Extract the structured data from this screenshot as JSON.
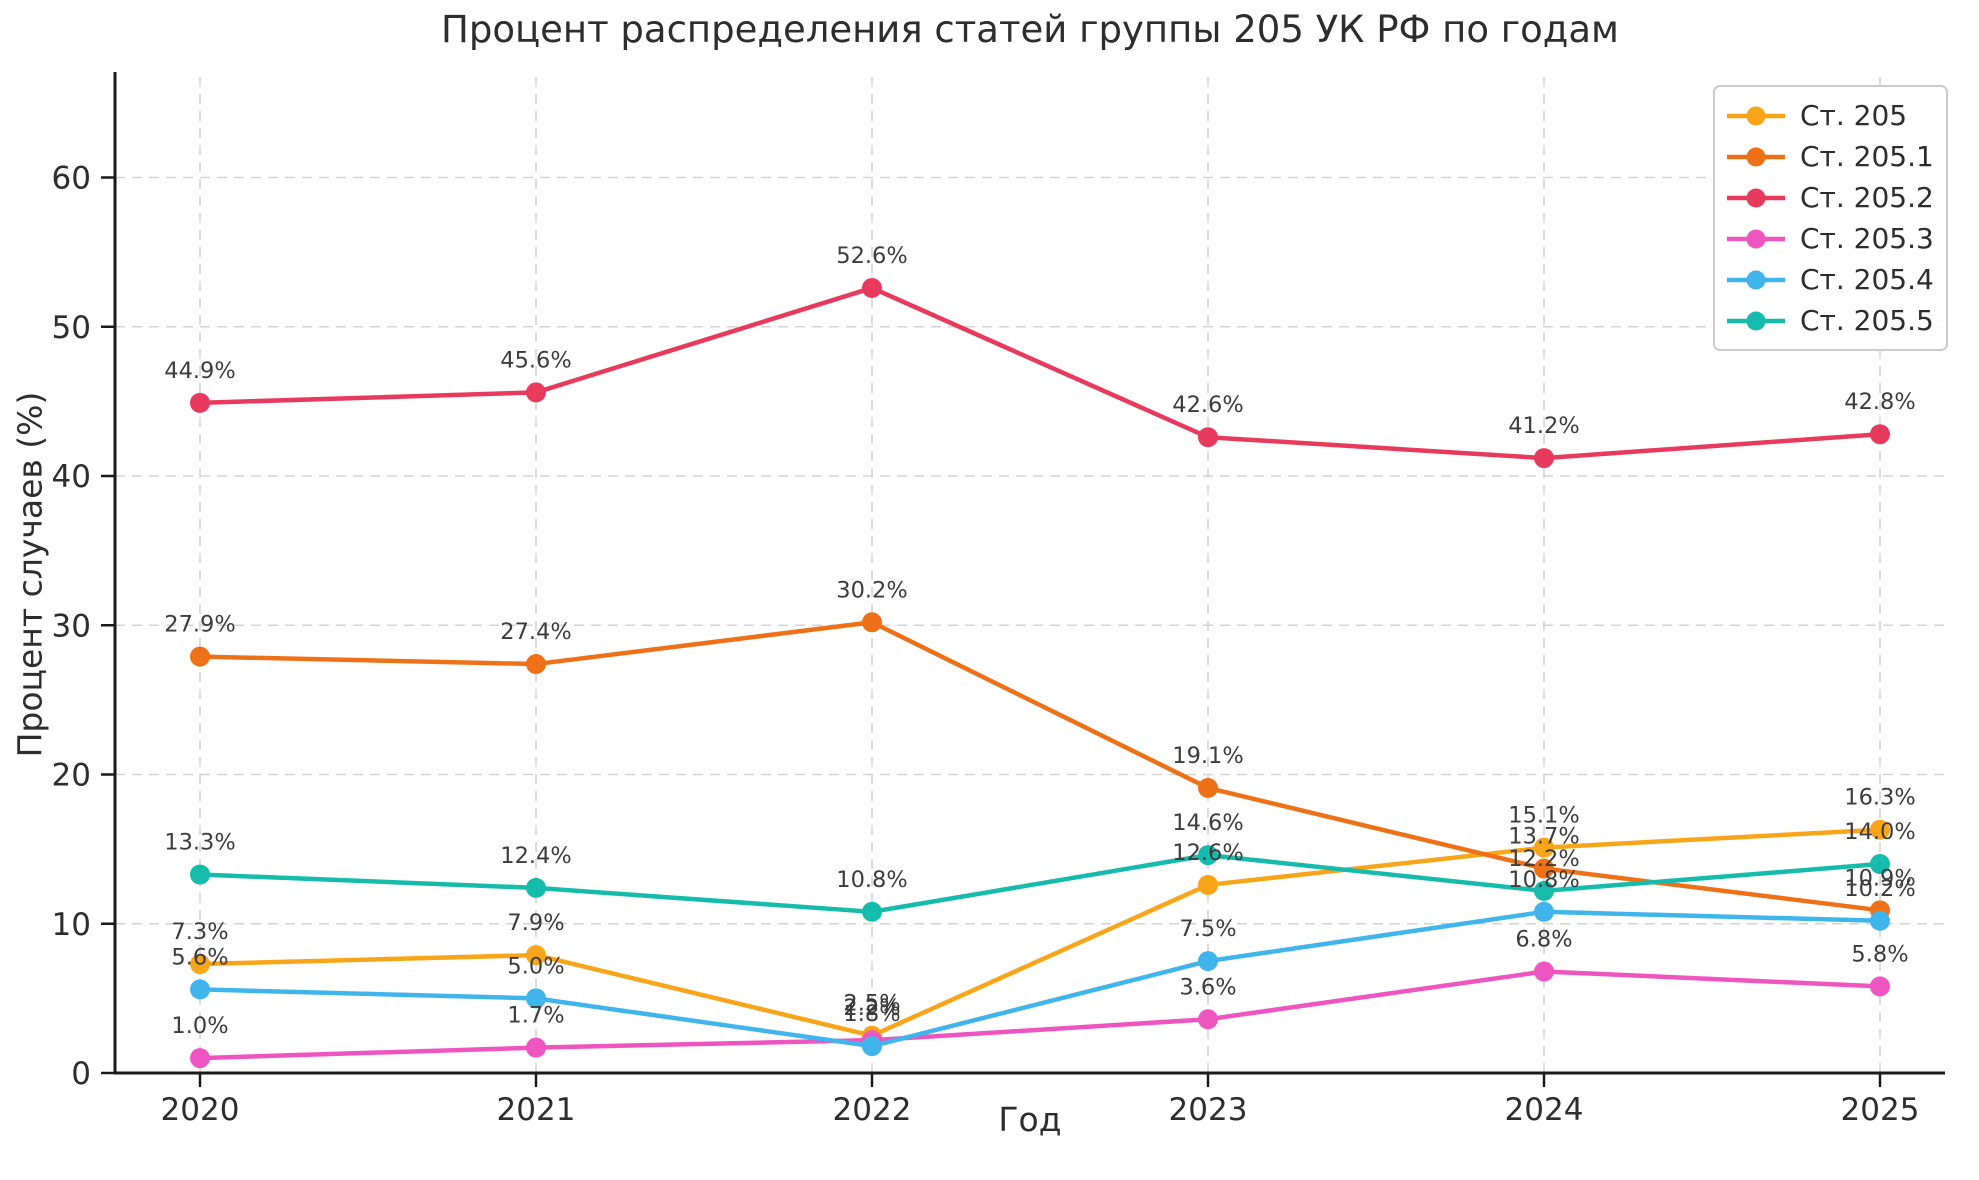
{
  "chart_data": {
    "type": "line",
    "title": "Процент распределения статей группы 205 УК РФ по годам",
    "xlabel": "Год",
    "ylabel": "Процент случаев (%)",
    "x": [
      2020,
      2021,
      2022,
      2023,
      2024,
      2025
    ],
    "x_tick_labels": [
      "2020",
      "2021",
      "2022",
      "2023",
      "2024",
      "2025"
    ],
    "y_ticks": [
      0,
      10,
      20,
      30,
      40,
      50,
      60
    ],
    "ylim": [
      0,
      67
    ],
    "grid": "dashed-both-axes",
    "legend_position": "upper-right",
    "point_labels": "each point labeled with value to one decimal followed by %",
    "series": [
      {
        "name": "Ст. 205",
        "color": "#F9A51A",
        "values": [
          7.3,
          7.9,
          2.5,
          12.6,
          15.1,
          16.3
        ]
      },
      {
        "name": "Ст. 205.1",
        "color": "#EE7118",
        "values": [
          27.9,
          27.4,
          30.2,
          19.1,
          13.7,
          10.9
        ]
      },
      {
        "name": "Ст. 205.2",
        "color": "#E83A5C",
        "values": [
          44.9,
          45.6,
          52.6,
          42.6,
          41.2,
          42.8
        ]
      },
      {
        "name": "Ст. 205.3",
        "color": "#EF55C0",
        "values": [
          1.0,
          1.7,
          2.2,
          3.6,
          6.8,
          5.8
        ]
      },
      {
        "name": "Ст. 205.4",
        "color": "#3FB5EC",
        "values": [
          5.6,
          5.0,
          1.8,
          7.5,
          10.8,
          10.2
        ]
      },
      {
        "name": "Ст. 205.5",
        "color": "#16BCAB",
        "values": [
          13.3,
          12.4,
          10.8,
          14.6,
          12.2,
          14.0
        ]
      }
    ],
    "style": {
      "grid_color": "#d3d3d3",
      "spine_color": "#1a1a1a",
      "tick_label_color": "#2d2d2d",
      "point_label_color": "#3c3c3c",
      "background": "#ffffff"
    }
  }
}
